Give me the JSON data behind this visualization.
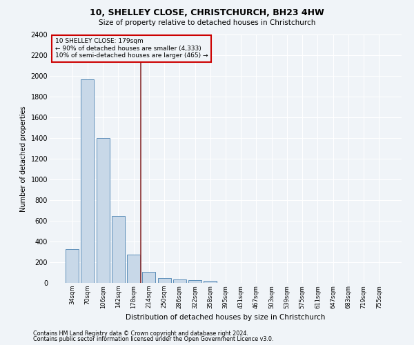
{
  "title": "10, SHELLEY CLOSE, CHRISTCHURCH, BH23 4HW",
  "subtitle": "Size of property relative to detached houses in Christchurch",
  "xlabel": "Distribution of detached houses by size in Christchurch",
  "ylabel": "Number of detached properties",
  "footnote1": "Contains HM Land Registry data © Crown copyright and database right 2024.",
  "footnote2": "Contains public sector information licensed under the Open Government Licence v3.0.",
  "bin_labels": [
    "34sqm",
    "70sqm",
    "106sqm",
    "142sqm",
    "178sqm",
    "214sqm",
    "250sqm",
    "286sqm",
    "322sqm",
    "358sqm",
    "395sqm",
    "431sqm",
    "467sqm",
    "503sqm",
    "539sqm",
    "575sqm",
    "611sqm",
    "647sqm",
    "683sqm",
    "719sqm",
    "755sqm"
  ],
  "bar_heights": [
    325,
    1970,
    1400,
    650,
    275,
    105,
    45,
    35,
    25,
    20,
    0,
    0,
    0,
    0,
    0,
    0,
    0,
    0,
    0,
    0,
    0
  ],
  "bar_color": "#c8d8e8",
  "bar_edge_color": "#5b8db8",
  "property_label": "10 SHELLEY CLOSE: 179sqm",
  "annotation_line1": "← 90% of detached houses are smaller (4,333)",
  "annotation_line2": "10% of semi-detached houses are larger (465) →",
  "vline_color": "#8b3030",
  "vline_x": 4.45,
  "ylim": [
    0,
    2400
  ],
  "yticks": [
    0,
    200,
    400,
    600,
    800,
    1000,
    1200,
    1400,
    1600,
    1800,
    2000,
    2200,
    2400
  ],
  "annotation_box_color": "#cc0000",
  "bg_color": "#f0f4f8",
  "grid_color": "#ffffff"
}
